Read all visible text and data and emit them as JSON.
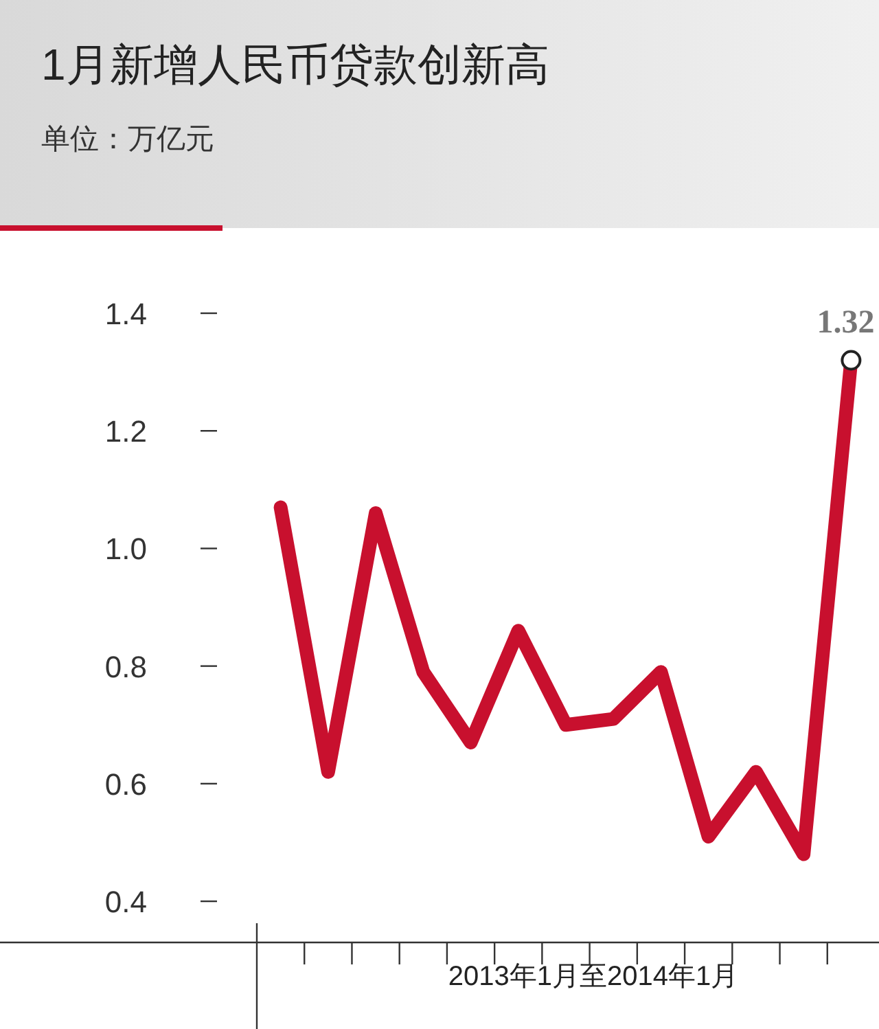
{
  "chart_data": {
    "type": "line",
    "title": "1月新增人民币贷款创新高",
    "subtitle": "单位：万亿元",
    "xlabel": "2013年1月至2014年1月",
    "categories": [
      null,
      null,
      null,
      null,
      null,
      null,
      null,
      null,
      null,
      null,
      null,
      null,
      null
    ],
    "series": [
      {
        "color": "#c8102e",
        "values": [
          1.07,
          0.62,
          1.06,
          0.79,
          0.67,
          0.86,
          0.7,
          0.71,
          0.79,
          0.51,
          0.62,
          0.48,
          1.32
        ],
        "value_labels": [
          null,
          null,
          null,
          null,
          null,
          null,
          null,
          null,
          null,
          null,
          null,
          null,
          "1.32"
        ]
      }
    ],
    "ylim": [
      0.33,
      1.4
    ],
    "yticks": [
      {
        "value": 0.4,
        "label": "0.4"
      },
      {
        "value": 0.6,
        "label": "0.6"
      },
      {
        "value": 0.8,
        "label": "0.8"
      },
      {
        "value": 1.0,
        "label": "1.0"
      },
      {
        "value": 1.2,
        "label": "1.2"
      },
      {
        "value": 1.4,
        "label": "1.4"
      }
    ]
  }
}
